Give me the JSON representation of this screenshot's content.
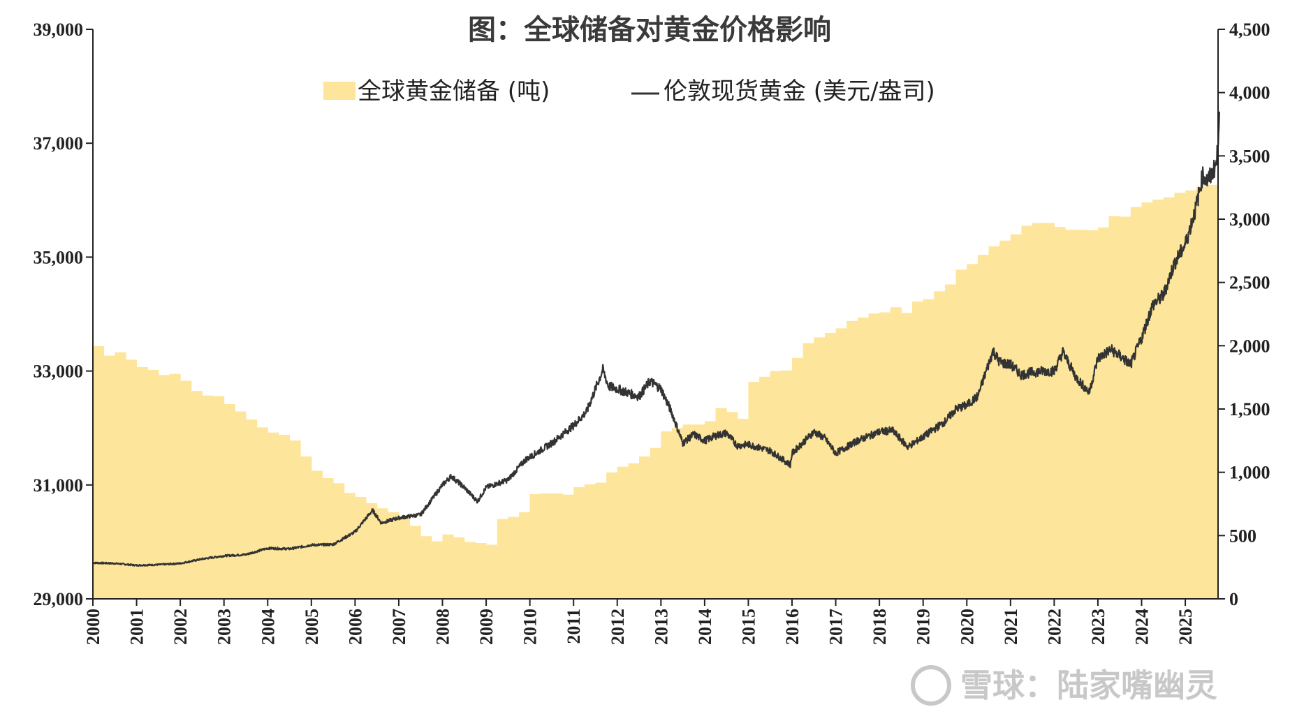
{
  "chart_data": {
    "type": "area",
    "title": "图：全球储备对黄金价格影响",
    "xlabel": "",
    "ylabel_left": "",
    "ylabel_right": "",
    "x_ticks": [
      "2000",
      "2001",
      "2002",
      "2003",
      "2004",
      "2005",
      "2006",
      "2007",
      "2008",
      "2009",
      "2010",
      "2011",
      "2012",
      "2013",
      "2014",
      "2015",
      "2016",
      "2017",
      "2018",
      "2019",
      "2020",
      "2021",
      "2022",
      "2023",
      "2024",
      "2025"
    ],
    "y_left": {
      "min": 29000,
      "max": 39000,
      "ticks": [
        "29,000",
        "31,000",
        "33,000",
        "35,000",
        "37,000",
        "39,000"
      ]
    },
    "y_right": {
      "min": 0,
      "max": 4500,
      "ticks": [
        "0",
        "500",
        "1,000",
        "1,500",
        "2,000",
        "2,500",
        "3,000",
        "3,500",
        "4,000",
        "4,500"
      ]
    },
    "legend": "top-center",
    "grid": false,
    "series": [
      {
        "name": "全球黄金储备 (吨)",
        "axis": "left",
        "color": "#fde59b",
        "x": [
          2000.0,
          2000.25,
          2000.5,
          2000.75,
          2001.0,
          2001.25,
          2001.5,
          2001.75,
          2002.0,
          2002.25,
          2002.5,
          2002.75,
          2003.0,
          2003.25,
          2003.5,
          2003.75,
          2004.0,
          2004.25,
          2004.5,
          2004.75,
          2005.0,
          2005.25,
          2005.5,
          2005.75,
          2006.0,
          2006.25,
          2006.5,
          2006.75,
          2007.0,
          2007.25,
          2007.5,
          2007.75,
          2008.0,
          2008.25,
          2008.5,
          2008.75,
          2009.0,
          2009.25,
          2009.5,
          2009.75,
          2010.0,
          2010.25,
          2010.5,
          2010.75,
          2011.0,
          2011.25,
          2011.5,
          2011.75,
          2012.0,
          2012.25,
          2012.5,
          2012.75,
          2013.0,
          2013.25,
          2013.5,
          2013.75,
          2014.0,
          2014.25,
          2014.5,
          2014.75,
          2015.0,
          2015.25,
          2015.5,
          2015.75,
          2016.0,
          2016.25,
          2016.5,
          2016.75,
          2017.0,
          2017.25,
          2017.5,
          2017.75,
          2018.0,
          2018.25,
          2018.5,
          2018.75,
          2019.0,
          2019.25,
          2019.5,
          2019.75,
          2020.0,
          2020.25,
          2020.5,
          2020.75,
          2021.0,
          2021.25,
          2021.5,
          2021.75,
          2022.0,
          2022.25,
          2022.5,
          2022.75,
          2023.0,
          2023.25,
          2023.5,
          2023.75,
          2024.0,
          2024.25,
          2024.5,
          2024.75,
          2025.0,
          2025.25,
          2025.5
        ],
        "values": [
          33440,
          33270,
          33330,
          33200,
          33070,
          33020,
          32930,
          32950,
          32830,
          32650,
          32570,
          32560,
          32420,
          32290,
          32150,
          32010,
          31920,
          31880,
          31780,
          31500,
          31250,
          31120,
          31030,
          30860,
          30790,
          30680,
          30590,
          30520,
          30450,
          30280,
          30100,
          30010,
          30130,
          30080,
          30000,
          29980,
          29950,
          30400,
          30440,
          30520,
          30840,
          30850,
          30850,
          30830,
          30960,
          31010,
          31040,
          31220,
          31320,
          31380,
          31500,
          31650,
          31940,
          32000,
          32060,
          32060,
          32120,
          32350,
          32280,
          32160,
          32810,
          32900,
          33000,
          33010,
          33230,
          33490,
          33590,
          33670,
          33750,
          33880,
          33940,
          34010,
          34030,
          34120,
          34020,
          34220,
          34260,
          34400,
          34520,
          34780,
          34880,
          35040,
          35190,
          35290,
          35400,
          35550,
          35600,
          35600,
          35530,
          35480,
          35480,
          35470,
          35520,
          35720,
          35710,
          35880,
          35960,
          36010,
          36050,
          36130,
          36170,
          36240,
          36270
        ]
      },
      {
        "name": "伦敦现货黄金 (美元/盎司)",
        "axis": "right",
        "color": "#333333",
        "x": [
          2000.0,
          2000.5,
          2001.0,
          2001.5,
          2002.0,
          2002.5,
          2003.0,
          2003.5,
          2004.0,
          2004.5,
          2005.0,
          2005.5,
          2006.0,
          2006.4,
          2006.6,
          2007.0,
          2007.5,
          2008.0,
          2008.2,
          2008.5,
          2008.8,
          2009.0,
          2009.5,
          2009.9,
          2010.0,
          2010.5,
          2011.0,
          2011.3,
          2011.67,
          2011.8,
          2012.0,
          2012.3,
          2012.5,
          2012.75,
          2013.0,
          2013.25,
          2013.5,
          2013.75,
          2014.0,
          2014.25,
          2014.5,
          2014.75,
          2015.0,
          2015.5,
          2015.96,
          2016.0,
          2016.5,
          2016.75,
          2017.0,
          2017.5,
          2018.0,
          2018.3,
          2018.65,
          2019.0,
          2019.5,
          2019.75,
          2020.0,
          2020.25,
          2020.6,
          2020.75,
          2021.0,
          2021.25,
          2021.5,
          2021.75,
          2022.0,
          2022.2,
          2022.5,
          2022.8,
          2023.0,
          2023.3,
          2023.5,
          2023.75,
          2024.0,
          2024.25,
          2024.5,
          2024.75,
          2025.0,
          2025.25,
          2025.4,
          2025.5,
          2025.6,
          2025.72,
          2025.78
        ],
        "values": [
          285,
          280,
          265,
          270,
          280,
          315,
          340,
          350,
          400,
          395,
          425,
          430,
          530,
          700,
          600,
          640,
          665,
          900,
          970,
          880,
          770,
          880,
          940,
          1100,
          1120,
          1230,
          1370,
          1480,
          1810,
          1680,
          1660,
          1620,
          1600,
          1720,
          1660,
          1470,
          1230,
          1300,
          1250,
          1290,
          1310,
          1210,
          1220,
          1170,
          1060,
          1150,
          1320,
          1270,
          1150,
          1250,
          1320,
          1330,
          1200,
          1280,
          1400,
          1500,
          1530,
          1600,
          1960,
          1870,
          1850,
          1770,
          1790,
          1800,
          1800,
          1950,
          1750,
          1630,
          1900,
          1970,
          1920,
          1850,
          2060,
          2320,
          2400,
          2650,
          2800,
          3100,
          3350,
          3300,
          3350,
          3450,
          3850
        ]
      }
    ],
    "watermark": "雪球：陆家嘴幽灵"
  }
}
